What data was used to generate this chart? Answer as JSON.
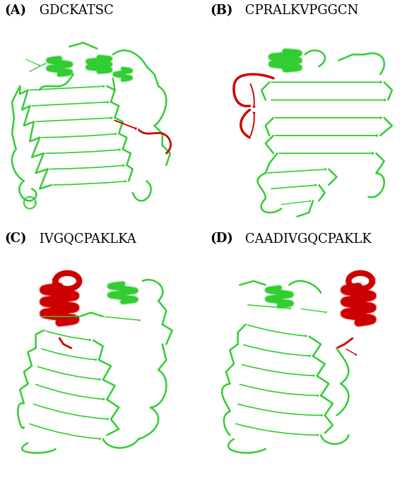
{
  "panels": [
    {
      "label": "(A)",
      "peptide": "GDCKATSC",
      "row": 0,
      "col": 0
    },
    {
      "label": "(B)",
      "peptide": "CPRALKVPGGCN",
      "row": 0,
      "col": 1
    },
    {
      "label": "(C)",
      "peptide": "IVGQCPAKLKA",
      "row": 1,
      "col": 0
    },
    {
      "label": "(D)",
      "peptide": "CAADIVGQCPAKLK",
      "row": 1,
      "col": 1
    }
  ],
  "label_bold_fontsize": 13,
  "peptide_fontsize": 13,
  "background_color": "#ffffff",
  "box_color": "#000000",
  "green_light": "#90ee90",
  "green_mid": "#32cd32",
  "green_dark": "#006400",
  "red_color": "#cc0000",
  "fig_width": 5.83,
  "fig_height": 6.8,
  "panel_bg": "#f5f5f5",
  "img_bg": "#ffffff"
}
